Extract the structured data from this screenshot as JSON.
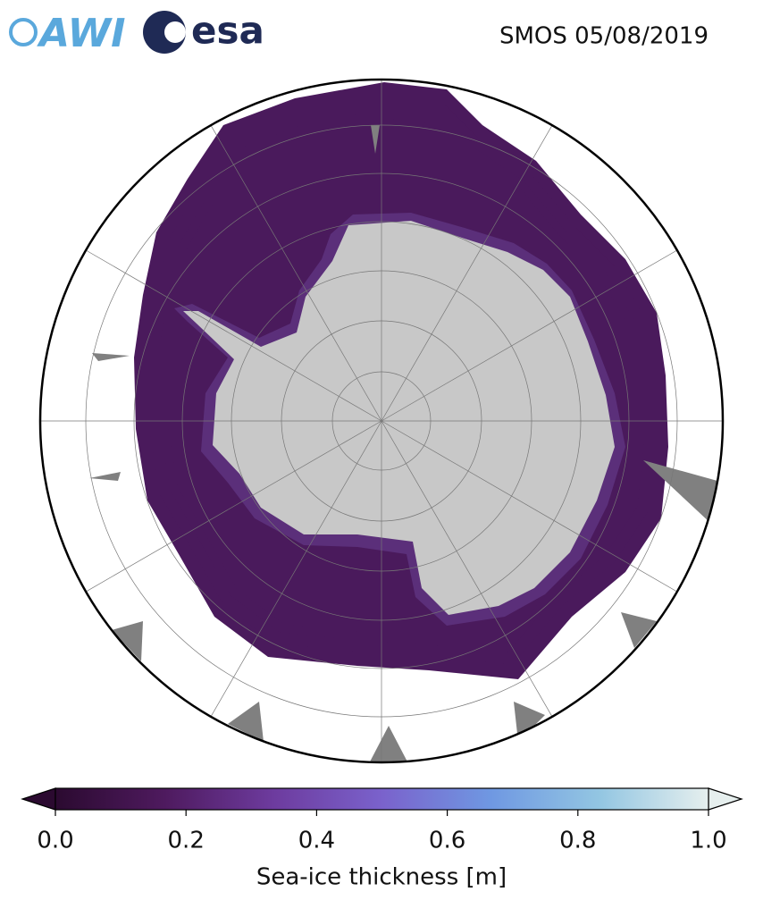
{
  "logos": {
    "left": "AWI",
    "right": "esa"
  },
  "map": {
    "title": "SMOS 05/08/2019"
  },
  "colorbar": {
    "label": "Sea-ice thickness [m]",
    "lim": [
      0,
      1
    ],
    "extend": "both",
    "colormap": [
      "#2b0a30",
      "#4e1a5e",
      "#6d3b9e",
      "#7a62cc",
      "#6f98e2",
      "#93c6e2",
      "#e6efee"
    ],
    "ticks": [
      {
        "value": 0,
        "label": "0.0"
      },
      0.2,
      0.4,
      0.6,
      0.8,
      {
        "value": 1,
        "label": "1.0"
      }
    ]
  }
}
